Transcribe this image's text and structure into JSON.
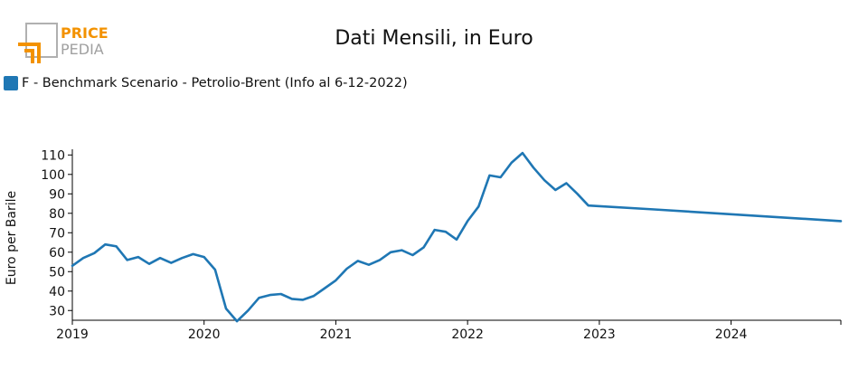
{
  "logo": {
    "line1": "PRICE",
    "line2": "PEDIA",
    "accent_color": "#f39200",
    "frame_color": "#b0b0b0"
  },
  "colors": {
    "series": "#1f77b4",
    "axis": "#000000"
  },
  "chart_data": {
    "type": "line",
    "title": "Dati Mensili, in Euro",
    "ylabel": "Euro per Barile",
    "xlabel": "",
    "ylim": [
      25,
      112
    ],
    "yticks": [
      30,
      40,
      50,
      60,
      70,
      80,
      90,
      100,
      110
    ],
    "xlim": [
      "2019-01",
      "2024-11"
    ],
    "xticks": [
      "2019",
      "2020",
      "2021",
      "2022",
      "2023",
      "2024"
    ],
    "legend_position": "top-left",
    "grid": false,
    "series": [
      {
        "name": "F - Benchmark Scenario - Petrolio-Brent (Info al 6-12-2022)",
        "color": "#1f77b4",
        "points": [
          [
            "2019-01",
            53
          ],
          [
            "2019-02",
            57
          ],
          [
            "2019-03",
            59.5
          ],
          [
            "2019-04",
            64
          ],
          [
            "2019-05",
            63
          ],
          [
            "2019-06",
            56
          ],
          [
            "2019-07",
            57.5
          ],
          [
            "2019-08",
            54
          ],
          [
            "2019-09",
            57
          ],
          [
            "2019-10",
            54.5
          ],
          [
            "2019-11",
            57
          ],
          [
            "2019-12",
            59
          ],
          [
            "2020-01",
            57.5
          ],
          [
            "2020-02",
            51
          ],
          [
            "2020-03",
            31
          ],
          [
            "2020-04",
            24.5
          ],
          [
            "2020-05",
            30
          ],
          [
            "2020-06",
            36.5
          ],
          [
            "2020-07",
            38
          ],
          [
            "2020-08",
            38.5
          ],
          [
            "2020-09",
            36
          ],
          [
            "2020-10",
            35.5
          ],
          [
            "2020-11",
            37.5
          ],
          [
            "2020-12",
            41.5
          ],
          [
            "2021-01",
            45.5
          ],
          [
            "2021-02",
            51.5
          ],
          [
            "2021-03",
            55.5
          ],
          [
            "2021-04",
            53.5
          ],
          [
            "2021-05",
            56
          ],
          [
            "2021-06",
            60
          ],
          [
            "2021-07",
            61
          ],
          [
            "2021-08",
            58.5
          ],
          [
            "2021-09",
            62.5
          ],
          [
            "2021-10",
            71.5
          ],
          [
            "2021-11",
            70.5
          ],
          [
            "2021-12",
            66.5
          ],
          [
            "2022-01",
            76
          ],
          [
            "2022-02",
            83.5
          ],
          [
            "2022-03",
            99.5
          ],
          [
            "2022-04",
            98.5
          ],
          [
            "2022-05",
            106
          ],
          [
            "2022-06",
            111
          ],
          [
            "2022-07",
            103.5
          ],
          [
            "2022-08",
            97
          ],
          [
            "2022-09",
            92
          ],
          [
            "2022-10",
            95.5
          ],
          [
            "2022-11",
            90
          ],
          [
            "2022-12",
            84
          ],
          [
            "2023-06",
            82
          ],
          [
            "2024-11",
            76
          ]
        ]
      }
    ]
  }
}
